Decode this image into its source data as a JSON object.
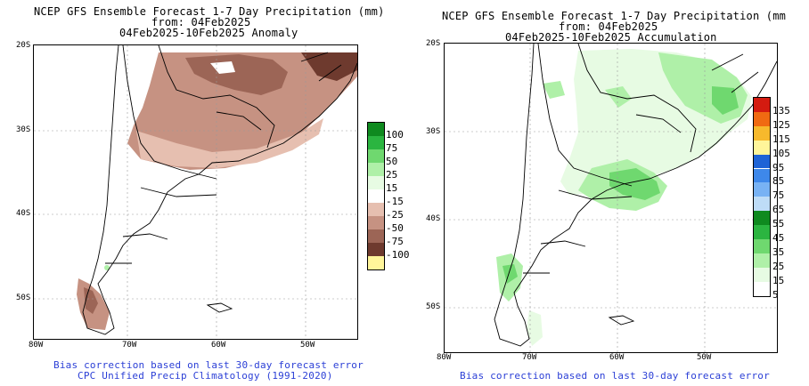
{
  "left_panel": {
    "title_line1": "NCEP GFS Ensemble Forecast 1-7 Day Precipitation (mm)",
    "title_line2": "from: 04Feb2025",
    "title_line3": "04Feb2025-10Feb2025 Anomaly",
    "lat_labels": [
      "20S",
      "30S",
      "40S",
      "50S"
    ],
    "lon_labels": [
      "80W",
      "70W",
      "60W",
      "50W"
    ],
    "legend": {
      "labels": [
        "100",
        "75",
        "50",
        "25",
        "15",
        "-15",
        "-25",
        "-50",
        "-75",
        "-100"
      ],
      "colors": [
        "#0f8a1f",
        "#2bb540",
        "#6fd86f",
        "#aff0a8",
        "#e7fbe3",
        "#ffffff",
        "#e6bfb0",
        "#c69282",
        "#9c6556",
        "#6e3a2e",
        "#fff59a"
      ]
    },
    "footer_line1": "Bias correction based on last 30-day forecast error",
    "footer_line2": "CPC Unified Precip Climatology (1991-2020)"
  },
  "right_panel": {
    "title_line1": "NCEP GFS Ensemble Forecast 1-7 Day Precipitation (mm",
    "title_line2": "from: 04Feb2025",
    "title_line3": "04Feb2025-10Feb2025 Accumulation",
    "lat_labels": [
      "20S",
      "30S",
      "40S",
      "50S"
    ],
    "lon_labels": [
      "80W",
      "70W",
      "60W",
      "50W"
    ],
    "legend": {
      "labels": [
        "135",
        "125",
        "115",
        "105",
        "95",
        "85",
        "75",
        "65",
        "55",
        "45",
        "35",
        "25",
        "15",
        "5"
      ],
      "colors": [
        "#d41b10",
        "#f06a12",
        "#f7b92c",
        "#fff59a",
        "#1e63d6",
        "#3e88ea",
        "#78b2f4",
        "#bedcf7",
        "#0f8a1f",
        "#2bb540",
        "#6fd86f",
        "#aff0a8",
        "#e7fbe3",
        "#ffffff"
      ]
    },
    "footer_line1": "Bias correction based on last 30-day forecast error"
  }
}
